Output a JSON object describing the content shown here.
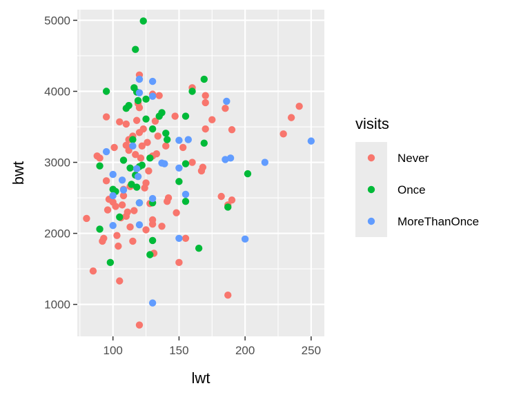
{
  "chart_data": {
    "type": "scatter",
    "xlabel": "lwt",
    "ylabel": "bwt",
    "xlim": [
      73,
      260
    ],
    "ylim": [
      550,
      5150
    ],
    "x_ticks": [
      100,
      150,
      200,
      250
    ],
    "y_ticks": [
      1000,
      2000,
      3000,
      4000,
      5000
    ],
    "x_tick_labels": [
      "100",
      "150",
      "200",
      "250"
    ],
    "y_tick_labels": [
      "1000",
      "2000",
      "3000",
      "4000",
      "5000"
    ],
    "grid": true,
    "legend": {
      "title": "visits",
      "position": "right"
    },
    "series": [
      {
        "name": "Never",
        "color": "#F8766D",
        "points": [
          [
            120,
            710
          ],
          [
            105,
            1330
          ],
          [
            85,
            1470
          ],
          [
            187,
            1130
          ],
          [
            80,
            2210
          ],
          [
            88,
            3090
          ],
          [
            90,
            3060
          ],
          [
            92,
            1890
          ],
          [
            93,
            1930
          ],
          [
            95,
            2740
          ],
          [
            95,
            3640
          ],
          [
            96,
            2330
          ],
          [
            97,
            2480
          ],
          [
            100,
            2440
          ],
          [
            101,
            3210
          ],
          [
            102,
            2380
          ],
          [
            103,
            1970
          ],
          [
            104,
            1820
          ],
          [
            105,
            3570
          ],
          [
            106,
            2220
          ],
          [
            107,
            2400
          ],
          [
            108,
            2530
          ],
          [
            108,
            2620
          ],
          [
            110,
            3240
          ],
          [
            110,
            3540
          ],
          [
            110,
            2240
          ],
          [
            111,
            2300
          ],
          [
            112,
            3170
          ],
          [
            112,
            3320
          ],
          [
            113,
            2660
          ],
          [
            113,
            2090
          ],
          [
            115,
            3370
          ],
          [
            115,
            1890
          ],
          [
            116,
            2320
          ],
          [
            117,
            3110
          ],
          [
            118,
            3590
          ],
          [
            119,
            3830
          ],
          [
            120,
            4230
          ],
          [
            120,
            3770
          ],
          [
            120,
            3420
          ],
          [
            121,
            3060
          ],
          [
            122,
            3230
          ],
          [
            123,
            3470
          ],
          [
            124,
            2640
          ],
          [
            125,
            2710
          ],
          [
            125,
            2050
          ],
          [
            126,
            3280
          ],
          [
            127,
            2880
          ],
          [
            128,
            2420
          ],
          [
            130,
            3960
          ],
          [
            130,
            3090
          ],
          [
            130,
            2190
          ],
          [
            130,
            2130
          ],
          [
            131,
            1720
          ],
          [
            132,
            3580
          ],
          [
            133,
            3120
          ],
          [
            134,
            3370
          ],
          [
            135,
            3940
          ],
          [
            137,
            2100
          ],
          [
            140,
            3230
          ],
          [
            141,
            2450
          ],
          [
            142,
            2500
          ],
          [
            147,
            3650
          ],
          [
            148,
            2290
          ],
          [
            150,
            1590
          ],
          [
            153,
            3210
          ],
          [
            155,
            1930
          ],
          [
            160,
            4050
          ],
          [
            160,
            3000
          ],
          [
            167,
            2880
          ],
          [
            168,
            2930
          ],
          [
            170,
            3840
          ],
          [
            170,
            3940
          ],
          [
            170,
            3470
          ],
          [
            175,
            3600
          ],
          [
            182,
            2520
          ],
          [
            185,
            3760
          ],
          [
            187,
            2400
          ],
          [
            190,
            3460
          ],
          [
            190,
            2470
          ],
          [
            229,
            3400
          ],
          [
            235,
            3630
          ],
          [
            241,
            3790
          ]
        ]
      },
      {
        "name": "Once",
        "color": "#00BA38",
        "points": [
          [
            123,
            4990
          ],
          [
            117,
            4590
          ],
          [
            95,
            4000
          ],
          [
            116,
            4050
          ],
          [
            118,
            3990
          ],
          [
            125,
            3890
          ],
          [
            110,
            3760
          ],
          [
            112,
            3800
          ],
          [
            119,
            3870
          ],
          [
            135,
            3650
          ],
          [
            137,
            3700
          ],
          [
            125,
            3610
          ],
          [
            130,
            3470
          ],
          [
            140,
            3410
          ],
          [
            141,
            3320
          ],
          [
            115,
            3320
          ],
          [
            160,
            4000
          ],
          [
            169,
            4170
          ],
          [
            155,
            3650
          ],
          [
            169,
            3270
          ],
          [
            128,
            3060
          ],
          [
            90,
            2950
          ],
          [
            108,
            3030
          ],
          [
            113,
            2920
          ],
          [
            117,
            2820
          ],
          [
            120,
            2940
          ],
          [
            122,
            2960
          ],
          [
            150,
            2730
          ],
          [
            155,
            2980
          ],
          [
            100,
            2620
          ],
          [
            102,
            2590
          ],
          [
            114,
            2690
          ],
          [
            118,
            2650
          ],
          [
            120,
            2430
          ],
          [
            130,
            2430
          ],
          [
            155,
            2450
          ],
          [
            187,
            2370
          ],
          [
            202,
            2840
          ],
          [
            105,
            2230
          ],
          [
            90,
            2060
          ],
          [
            98,
            1590
          ],
          [
            128,
            1700
          ],
          [
            130,
            1900
          ],
          [
            165,
            1790
          ]
        ]
      },
      {
        "name": "MoreThanOnce",
        "color": "#619CFF",
        "points": [
          [
            130,
            4140
          ],
          [
            120,
            4170
          ],
          [
            120,
            3980
          ],
          [
            130,
            3930
          ],
          [
            186,
            3860
          ],
          [
            137,
            2990
          ],
          [
            139,
            2980
          ],
          [
            150,
            3310
          ],
          [
            157,
            3320
          ],
          [
            150,
            2920
          ],
          [
            155,
            2550
          ],
          [
            185,
            3040
          ],
          [
            189,
            3060
          ],
          [
            215,
            3000
          ],
          [
            250,
            3300
          ],
          [
            95,
            3150
          ],
          [
            100,
            2830
          ],
          [
            100,
            2530
          ],
          [
            107,
            2750
          ],
          [
            115,
            3230
          ],
          [
            118,
            2910
          ],
          [
            119,
            2800
          ],
          [
            120,
            2430
          ],
          [
            130,
            2490
          ],
          [
            100,
            2110
          ],
          [
            108,
            2610
          ],
          [
            120,
            2120
          ],
          [
            150,
            1930
          ],
          [
            200,
            1920
          ],
          [
            130,
            1020
          ]
        ]
      }
    ]
  }
}
